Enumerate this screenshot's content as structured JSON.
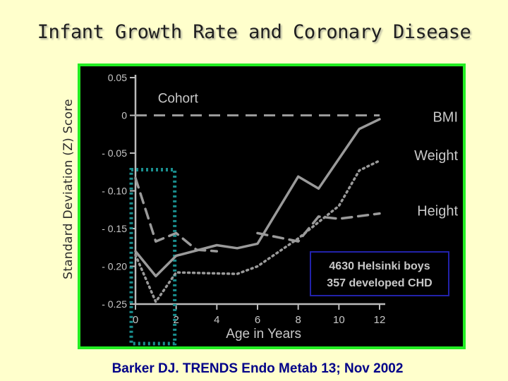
{
  "title": "Infant Growth Rate and Coronary Disease",
  "citation": "Barker DJ. TRENDS Endo Metab 13; Nov 2002",
  "colors": {
    "background": "#ffffcc",
    "panel": "#000000",
    "panel_border": "#22ee22",
    "axis": "#bbbbbb",
    "series": "#9a9a9a",
    "highlight_box": "#1a8f8f",
    "info_box_border": "#2222aa",
    "text": "#c8c8c8"
  },
  "chart_data": {
    "type": "line",
    "ylabel": "Standard Deviation (Z) Score",
    "xlabel": "Age in Years",
    "xlim": [
      0,
      12
    ],
    "ylim": [
      -0.25,
      0.05
    ],
    "x_ticks": [
      "0",
      "2",
      "4",
      "6",
      "8",
      "10",
      "12"
    ],
    "y_ticks": [
      "0.05",
      "0",
      "- 0.05",
      "- 0.10",
      "- 0.15",
      "- 0.20",
      "- 0.25"
    ],
    "grid": false,
    "reference_line": {
      "label": "Cohort",
      "y": 0
    },
    "series": [
      {
        "name": "BMI",
        "style": "solid",
        "x": [
          0,
          1,
          2,
          4,
          5,
          6,
          8,
          9,
          11,
          12
        ],
        "y": [
          -0.18,
          -0.213,
          -0.186,
          -0.172,
          -0.176,
          -0.17,
          -0.081,
          -0.097,
          -0.018,
          -0.005
        ]
      },
      {
        "name": "Weight",
        "style": "dotted",
        "x": [
          0,
          1,
          2,
          5,
          6,
          8,
          10,
          11,
          12
        ],
        "y": [
          -0.185,
          -0.247,
          -0.208,
          -0.21,
          -0.2,
          -0.163,
          -0.12,
          -0.073,
          -0.06
        ]
      },
      {
        "name": "Height",
        "style": "dashed",
        "x": [
          0,
          1,
          2,
          3,
          4
        ],
        "y": [
          -0.083,
          -0.167,
          -0.156,
          -0.178,
          -0.18
        ]
      },
      {
        "name": "Height",
        "style": "dashed",
        "x": [
          6,
          8,
          9,
          10,
          12
        ],
        "y": [
          -0.156,
          -0.167,
          -0.134,
          -0.137,
          -0.13
        ]
      }
    ],
    "series_labels": [
      "BMI",
      "Weight",
      "Height"
    ],
    "annotation": [
      "4630 Helsinki boys",
      "357 developed CHD"
    ],
    "highlight_range": [
      0,
      2
    ]
  }
}
